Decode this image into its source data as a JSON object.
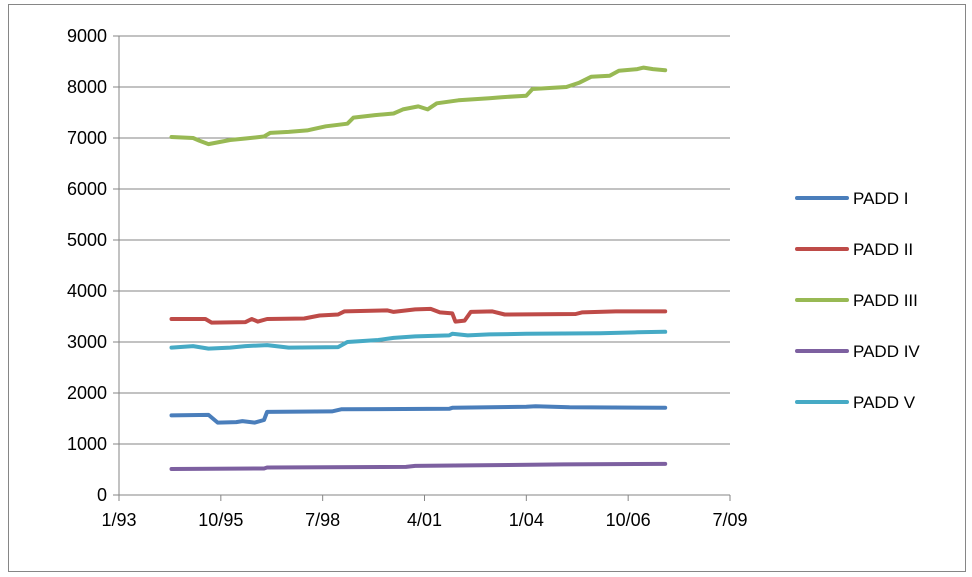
{
  "chart_data": {
    "type": "line",
    "title": "",
    "xlabel": "",
    "ylabel": "",
    "ylim": [
      0,
      9000
    ],
    "y_ticks": [
      "0",
      "1000",
      "2000",
      "3000",
      "4000",
      "5000",
      "6000",
      "7000",
      "8000",
      "9000"
    ],
    "x_ticks": [
      "1/93",
      "10/95",
      "7/98",
      "4/01",
      "1/04",
      "10/06",
      "7/09"
    ],
    "grid": "horizontal",
    "legend_position": "right",
    "series": [
      {
        "name": "PADD I",
        "color": "#4a7ebb",
        "points": [
          [
            "1994-06",
            1560
          ],
          [
            "1995-06",
            1570
          ],
          [
            "1995-09",
            1420
          ],
          [
            "1996-03",
            1430
          ],
          [
            "1996-05",
            1450
          ],
          [
            "1996-09",
            1420
          ],
          [
            "1996-12",
            1470
          ],
          [
            "1997-01",
            1630
          ],
          [
            "1998-10",
            1640
          ],
          [
            "1999-01",
            1680
          ],
          [
            "2001-12",
            1690
          ],
          [
            "2002-01",
            1710
          ],
          [
            "2004-01",
            1730
          ],
          [
            "2004-04",
            1740
          ],
          [
            "2005-03",
            1720
          ],
          [
            "2007-10",
            1710
          ]
        ]
      },
      {
        "name": "PADD II",
        "color": "#be4b48",
        "points": [
          [
            "1994-06",
            3450
          ],
          [
            "1995-05",
            3450
          ],
          [
            "1995-07",
            3380
          ],
          [
            "1996-06",
            3390
          ],
          [
            "1996-08",
            3450
          ],
          [
            "1996-10",
            3400
          ],
          [
            "1997-01",
            3450
          ],
          [
            "1998-01",
            3460
          ],
          [
            "1998-06",
            3520
          ],
          [
            "1998-12",
            3540
          ],
          [
            "1999-02",
            3600
          ],
          [
            "2000-04",
            3620
          ],
          [
            "2000-06",
            3590
          ],
          [
            "2001-01",
            3640
          ],
          [
            "2001-06",
            3650
          ],
          [
            "2001-09",
            3580
          ],
          [
            "2002-01",
            3560
          ],
          [
            "2002-02",
            3400
          ],
          [
            "2002-05",
            3420
          ],
          [
            "2002-07",
            3590
          ],
          [
            "2003-02",
            3600
          ],
          [
            "2003-06",
            3540
          ],
          [
            "2005-05",
            3550
          ],
          [
            "2005-07",
            3580
          ],
          [
            "2006-06",
            3600
          ],
          [
            "2007-10",
            3600
          ]
        ]
      },
      {
        "name": "PADD III",
        "color": "#98b954",
        "points": [
          [
            "1994-06",
            7020
          ],
          [
            "1995-01",
            7000
          ],
          [
            "1995-03",
            6950
          ],
          [
            "1995-06",
            6880
          ],
          [
            "1996-01",
            6960
          ],
          [
            "1996-06",
            6990
          ],
          [
            "1996-12",
            7030
          ],
          [
            "1997-02",
            7100
          ],
          [
            "1997-08",
            7120
          ],
          [
            "1998-02",
            7150
          ],
          [
            "1998-08",
            7230
          ],
          [
            "1999-03",
            7280
          ],
          [
            "1999-05",
            7400
          ],
          [
            "1999-12",
            7450
          ],
          [
            "2000-06",
            7480
          ],
          [
            "2000-09",
            7560
          ],
          [
            "2001-02",
            7620
          ],
          [
            "2001-05",
            7560
          ],
          [
            "2001-08",
            7680
          ],
          [
            "2002-03",
            7740
          ],
          [
            "2003-01",
            7780
          ],
          [
            "2003-05",
            7800
          ],
          [
            "2004-01",
            7830
          ],
          [
            "2004-03",
            7960
          ],
          [
            "2005-02",
            8000
          ],
          [
            "2005-06",
            8080
          ],
          [
            "2005-10",
            8200
          ],
          [
            "2006-04",
            8220
          ],
          [
            "2006-07",
            8320
          ],
          [
            "2007-01",
            8350
          ],
          [
            "2007-03",
            8380
          ],
          [
            "2007-06",
            8350
          ],
          [
            "2007-10",
            8330
          ]
        ]
      },
      {
        "name": "PADD IV",
        "color": "#7d60a0",
        "points": [
          [
            "1994-06",
            510
          ],
          [
            "1996-12",
            520
          ],
          [
            "1997-01",
            540
          ],
          [
            "2000-10",
            550
          ],
          [
            "2001-01",
            570
          ],
          [
            "2002-06",
            580
          ],
          [
            "2005-01",
            600
          ],
          [
            "2007-10",
            610
          ]
        ]
      },
      {
        "name": "PADD V",
        "color": "#46aac5",
        "points": [
          [
            "1994-06",
            2890
          ],
          [
            "1995-01",
            2920
          ],
          [
            "1995-06",
            2870
          ],
          [
            "1996-01",
            2890
          ],
          [
            "1996-06",
            2920
          ],
          [
            "1997-01",
            2940
          ],
          [
            "1997-08",
            2890
          ],
          [
            "1998-12",
            2900
          ],
          [
            "1999-03",
            3000
          ],
          [
            "2000-01",
            3040
          ],
          [
            "2000-06",
            3080
          ],
          [
            "2001-01",
            3110
          ],
          [
            "2001-12",
            3130
          ],
          [
            "2002-01",
            3160
          ],
          [
            "2002-06",
            3130
          ],
          [
            "2003-01",
            3150
          ],
          [
            "2004-01",
            3160
          ],
          [
            "2006-01",
            3170
          ],
          [
            "2007-01",
            3190
          ],
          [
            "2007-10",
            3200
          ]
        ]
      }
    ]
  }
}
